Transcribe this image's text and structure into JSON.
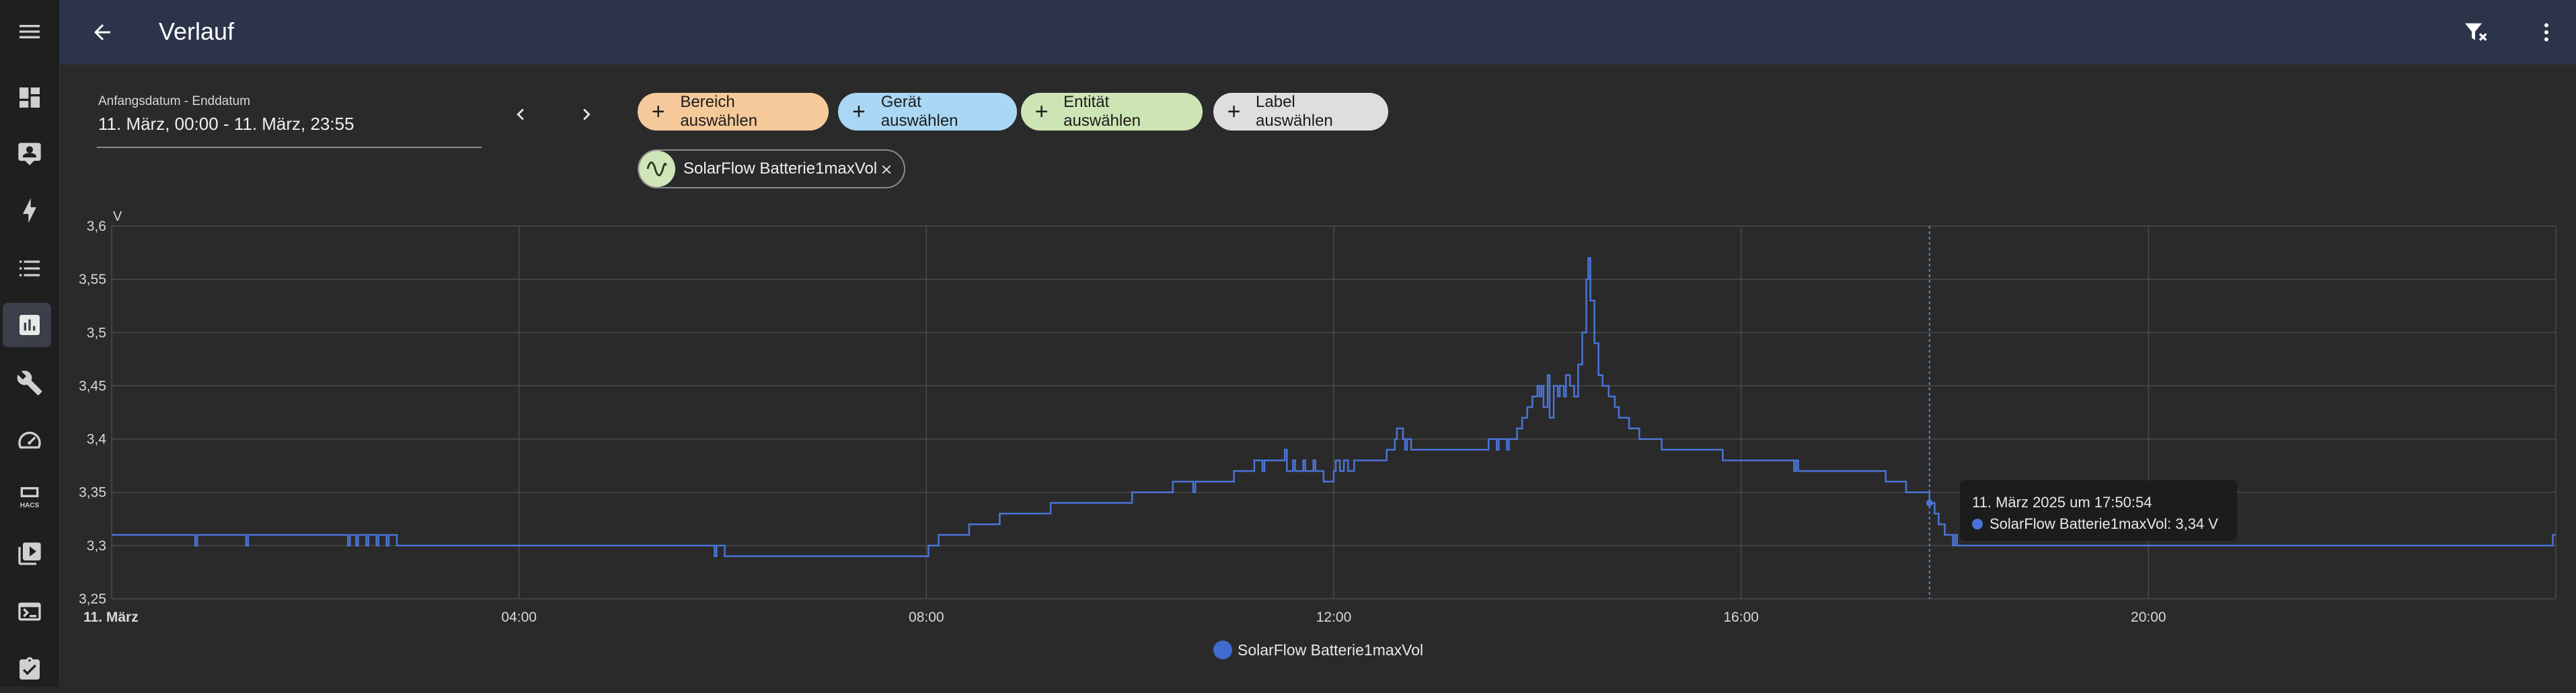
{
  "header": {
    "title": "Verlauf"
  },
  "sidebar": {
    "items": [
      {
        "name": "menu-icon"
      },
      {
        "name": "dashboard-icon"
      },
      {
        "name": "map-account-icon"
      },
      {
        "name": "energy-icon"
      },
      {
        "name": "logbook-icon"
      },
      {
        "name": "history-icon",
        "active": true
      },
      {
        "name": "wrench-icon"
      },
      {
        "name": "gauge-icon"
      },
      {
        "name": "hacs-icon"
      },
      {
        "name": "media-icon"
      },
      {
        "name": "terminal-icon"
      },
      {
        "name": "todo-icon"
      }
    ]
  },
  "date_picker": {
    "label": "Anfangsdatum - Enddatum",
    "value": "11. März, 00:00 - 11. März, 23:55"
  },
  "target_chips": {
    "area": "Bereich auswählen",
    "device": "Gerät auswählen",
    "entity": "Entität auswählen",
    "label": "Label auswählen"
  },
  "selected_entity": {
    "name": "SolarFlow Batterie1maxVol"
  },
  "tooltip": {
    "title": "11. März 2025 um 17:50:54",
    "row": "SolarFlow Batterie1maxVol: 3,34 V"
  },
  "legend": {
    "label": "SolarFlow Batterie1maxVol"
  },
  "colors": {
    "line": "#4a74d6",
    "header": "#2c344a",
    "background": "#2a2a2b"
  },
  "chart_data": {
    "type": "line",
    "step": true,
    "unit": "V",
    "xlim": [
      0,
      24
    ],
    "ylim": [
      3.25,
      3.6
    ],
    "x_tick_labels": [
      "11. März",
      "04:00",
      "08:00",
      "12:00",
      "16:00",
      "20:00"
    ],
    "x_tick_hours": [
      0,
      4,
      8,
      12,
      16,
      20
    ],
    "y_tick_labels": [
      "3,25",
      "3,3",
      "3,35",
      "3,4",
      "3,45",
      "3,5",
      "3,55",
      "3,6"
    ],
    "y_tick_values": [
      3.25,
      3.3,
      3.35,
      3.4,
      3.45,
      3.5,
      3.55,
      3.6
    ],
    "grid": true,
    "legend_position": "bottom-center",
    "crosshair_hour": 17.85,
    "series": [
      {
        "name": "SolarFlow Batterie1maxVol",
        "points": [
          [
            0.0,
            3.31
          ],
          [
            0.8,
            3.31
          ],
          [
            0.82,
            3.3
          ],
          [
            0.84,
            3.31
          ],
          [
            1.3,
            3.31
          ],
          [
            1.32,
            3.3
          ],
          [
            1.34,
            3.31
          ],
          [
            2.3,
            3.31
          ],
          [
            2.32,
            3.3
          ],
          [
            2.34,
            3.31
          ],
          [
            2.4,
            3.3
          ],
          [
            2.42,
            3.31
          ],
          [
            2.5,
            3.3
          ],
          [
            2.52,
            3.31
          ],
          [
            2.6,
            3.3
          ],
          [
            2.62,
            3.31
          ],
          [
            2.7,
            3.3
          ],
          [
            2.72,
            3.31
          ],
          [
            2.8,
            3.3
          ],
          [
            5.9,
            3.3
          ],
          [
            5.92,
            3.29
          ],
          [
            5.94,
            3.3
          ],
          [
            6.0,
            3.3
          ],
          [
            6.02,
            3.29
          ],
          [
            8.0,
            3.29
          ],
          [
            8.02,
            3.3
          ],
          [
            8.1,
            3.3
          ],
          [
            8.12,
            3.31
          ],
          [
            8.4,
            3.31
          ],
          [
            8.42,
            3.32
          ],
          [
            8.7,
            3.32
          ],
          [
            8.72,
            3.33
          ],
          [
            9.2,
            3.33
          ],
          [
            9.22,
            3.34
          ],
          [
            9.6,
            3.34
          ],
          [
            9.62,
            3.34
          ],
          [
            10.0,
            3.34
          ],
          [
            10.02,
            3.35
          ],
          [
            10.4,
            3.35
          ],
          [
            10.42,
            3.36
          ],
          [
            10.6,
            3.36
          ],
          [
            10.62,
            3.35
          ],
          [
            10.64,
            3.36
          ],
          [
            11.0,
            3.36
          ],
          [
            11.02,
            3.37
          ],
          [
            11.2,
            3.37
          ],
          [
            11.22,
            3.38
          ],
          [
            11.3,
            3.37
          ],
          [
            11.32,
            3.38
          ],
          [
            11.5,
            3.38
          ],
          [
            11.52,
            3.39
          ],
          [
            11.54,
            3.37
          ],
          [
            11.6,
            3.38
          ],
          [
            11.62,
            3.37
          ],
          [
            11.7,
            3.38
          ],
          [
            11.72,
            3.37
          ],
          [
            11.8,
            3.38
          ],
          [
            11.82,
            3.37
          ],
          [
            11.9,
            3.36
          ],
          [
            12.0,
            3.37
          ],
          [
            12.02,
            3.38
          ],
          [
            12.06,
            3.37
          ],
          [
            12.1,
            3.38
          ],
          [
            12.14,
            3.37
          ],
          [
            12.2,
            3.38
          ],
          [
            12.5,
            3.38
          ],
          [
            12.52,
            3.39
          ],
          [
            12.6,
            3.4
          ],
          [
            12.62,
            3.41
          ],
          [
            12.68,
            3.4
          ],
          [
            12.7,
            3.39
          ],
          [
            12.72,
            3.4
          ],
          [
            12.76,
            3.39
          ],
          [
            13.5,
            3.39
          ],
          [
            13.52,
            3.4
          ],
          [
            13.6,
            3.39
          ],
          [
            13.62,
            3.4
          ],
          [
            13.7,
            3.39
          ],
          [
            13.72,
            3.4
          ],
          [
            13.8,
            3.41
          ],
          [
            13.85,
            3.42
          ],
          [
            13.9,
            3.43
          ],
          [
            13.95,
            3.44
          ],
          [
            14.0,
            3.45
          ],
          [
            14.02,
            3.44
          ],
          [
            14.04,
            3.45
          ],
          [
            14.06,
            3.43
          ],
          [
            14.1,
            3.46
          ],
          [
            14.12,
            3.42
          ],
          [
            14.16,
            3.45
          ],
          [
            14.2,
            3.44
          ],
          [
            14.22,
            3.45
          ],
          [
            14.26,
            3.44
          ],
          [
            14.28,
            3.46
          ],
          [
            14.32,
            3.45
          ],
          [
            14.36,
            3.44
          ],
          [
            14.4,
            3.47
          ],
          [
            14.44,
            3.5
          ],
          [
            14.48,
            3.55
          ],
          [
            14.5,
            3.57
          ],
          [
            14.52,
            3.53
          ],
          [
            14.56,
            3.49
          ],
          [
            14.6,
            3.46
          ],
          [
            14.64,
            3.45
          ],
          [
            14.7,
            3.44
          ],
          [
            14.76,
            3.43
          ],
          [
            14.8,
            3.42
          ],
          [
            14.9,
            3.41
          ],
          [
            15.0,
            3.4
          ],
          [
            15.2,
            3.4
          ],
          [
            15.22,
            3.39
          ],
          [
            15.8,
            3.39
          ],
          [
            15.82,
            3.38
          ],
          [
            16.5,
            3.38
          ],
          [
            16.52,
            3.37
          ],
          [
            16.54,
            3.38
          ],
          [
            16.56,
            3.37
          ],
          [
            17.4,
            3.37
          ],
          [
            17.42,
            3.36
          ],
          [
            17.6,
            3.36
          ],
          [
            17.62,
            3.35
          ],
          [
            17.84,
            3.35
          ],
          [
            17.85,
            3.34
          ],
          [
            17.9,
            3.33
          ],
          [
            17.94,
            3.32
          ],
          [
            18.0,
            3.31
          ],
          [
            18.05,
            3.31
          ],
          [
            18.08,
            3.3
          ],
          [
            18.1,
            3.31
          ],
          [
            18.12,
            3.3
          ],
          [
            23.95,
            3.3
          ],
          [
            23.97,
            3.31
          ],
          [
            24.0,
            3.31
          ]
        ]
      }
    ]
  }
}
